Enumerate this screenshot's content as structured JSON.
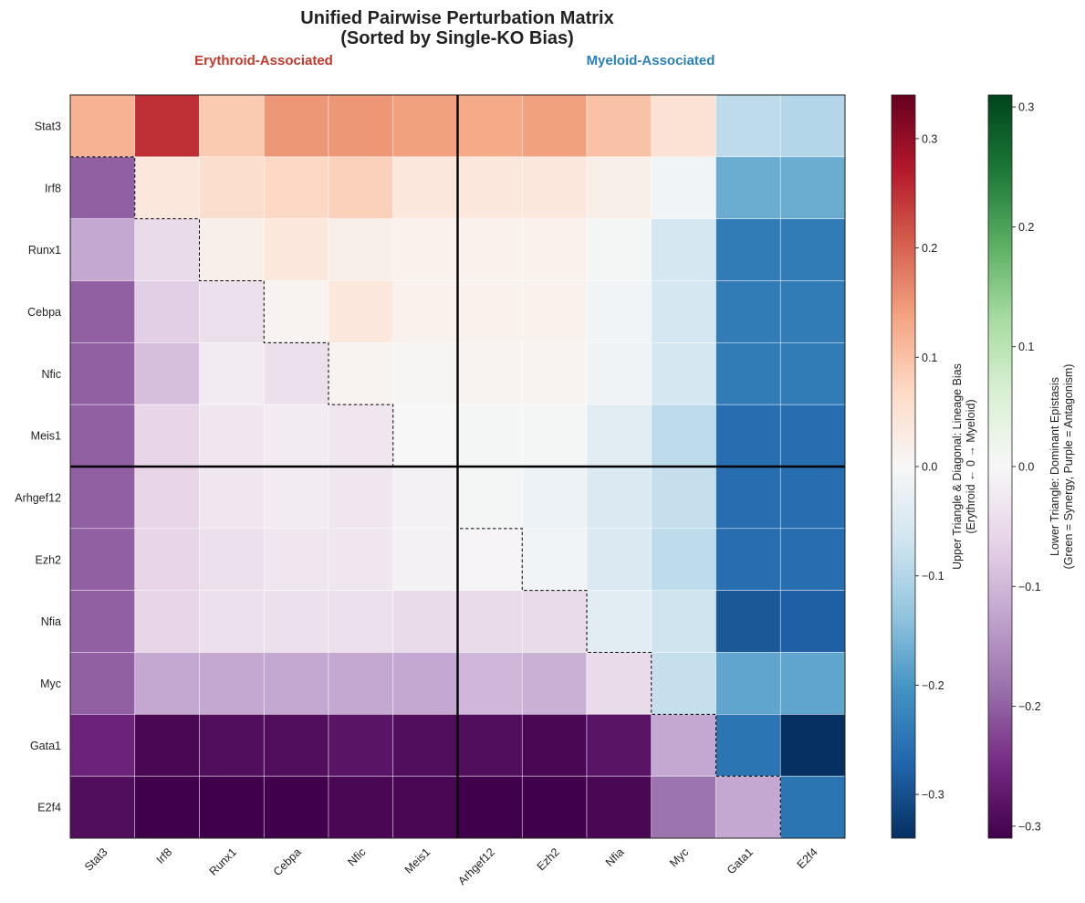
{
  "chart_data": {
    "type": "heatmap",
    "title_lines": [
      "Unified Pairwise Perturbation Matrix",
      "(Sorted by Single-KO Bias)"
    ],
    "group_labels": [
      {
        "text": "Erythroid-Associated",
        "color": "#c0392b"
      },
      {
        "text": "Myeloid-Associated",
        "color": "#2980b9"
      }
    ],
    "genes": [
      "Stat3",
      "Irf8",
      "Runx1",
      "Cebpa",
      "Nfic",
      "Meis1",
      "Arhgef12",
      "Ezh2",
      "Nfia",
      "Myc",
      "Gata1",
      "E2f4"
    ],
    "group_split_after_index": 5,
    "matrix": [
      [
        0.12,
        0.25,
        0.09,
        0.15,
        0.15,
        0.14,
        0.13,
        0.14,
        0.1,
        0.05,
        -0.09,
        -0.1
      ],
      [
        -0.2,
        0.04,
        0.06,
        0.07,
        0.08,
        0.04,
        0.04,
        0.04,
        0.02,
        -0.01,
        -0.17,
        -0.17
      ],
      [
        -0.12,
        -0.05,
        0.02,
        0.04,
        0.02,
        0.015,
        0.015,
        0.015,
        -0.005,
        -0.06,
        -0.24,
        -0.24
      ],
      [
        -0.2,
        -0.07,
        -0.04,
        0.01,
        0.04,
        0.015,
        0.015,
        0.015,
        -0.01,
        -0.06,
        -0.24,
        -0.24
      ],
      [
        -0.2,
        -0.09,
        -0.02,
        -0.04,
        0.01,
        0.005,
        0.01,
        0.01,
        -0.015,
        -0.06,
        -0.24,
        -0.24
      ],
      [
        -0.2,
        -0.06,
        -0.03,
        -0.02,
        -0.03,
        0.0,
        -0.005,
        -0.005,
        -0.04,
        -0.09,
        -0.26,
        -0.26
      ],
      [
        -0.2,
        -0.06,
        -0.03,
        -0.02,
        -0.03,
        -0.01,
        -0.005,
        -0.02,
        -0.05,
        -0.08,
        -0.26,
        -0.26
      ],
      [
        -0.2,
        -0.06,
        -0.04,
        -0.03,
        -0.03,
        -0.01,
        -0.005,
        -0.01,
        -0.05,
        -0.09,
        -0.26,
        -0.26
      ],
      [
        -0.2,
        -0.06,
        -0.04,
        -0.04,
        -0.04,
        -0.05,
        -0.05,
        -0.05,
        -0.04,
        -0.07,
        -0.29,
        -0.28
      ],
      [
        -0.2,
        -0.12,
        -0.12,
        -0.12,
        -0.12,
        -0.12,
        -0.1,
        -0.11,
        -0.05,
        -0.08,
        -0.18,
        -0.18
      ],
      [
        -0.26,
        -0.3,
        -0.29,
        -0.29,
        -0.28,
        -0.29,
        -0.29,
        -0.3,
        -0.28,
        -0.12,
        -0.25,
        -0.34
      ],
      [
        -0.29,
        -0.31,
        -0.31,
        -0.31,
        -0.3,
        -0.3,
        -0.31,
        -0.31,
        -0.3,
        -0.18,
        -0.12,
        -0.25
      ]
    ],
    "upper_colorbar": {
      "label_lines": [
        "Upper Triangle & Diagonal: Lineage Bias",
        "(Erythroid ← 0 → Myeloid)"
      ],
      "range": [
        -0.34,
        0.34
      ],
      "ticks": [
        -0.3,
        -0.2,
        -0.1,
        0.0,
        0.1,
        0.2,
        0.3
      ],
      "tick_labels": [
        "−0.3",
        "−0.2",
        "−0.1",
        "0.0",
        "0.1",
        "0.2",
        "0.3"
      ],
      "colormap": [
        "#053061",
        "#2166ac",
        "#4393c3",
        "#92c5de",
        "#d1e5f0",
        "#f7f7f7",
        "#fddbc7",
        "#f4a582",
        "#d6604d",
        "#b2182b",
        "#67001f"
      ]
    },
    "lower_colorbar": {
      "label_lines": [
        "Lower Triangle: Dominant Epistasis",
        "(Green = Synergy, Purple = Antagonism)"
      ],
      "range": [
        -0.31,
        0.31
      ],
      "ticks": [
        -0.3,
        -0.2,
        -0.1,
        0.0,
        0.1,
        0.2,
        0.3
      ],
      "tick_labels": [
        "−0.3",
        "−0.2",
        "−0.1",
        "0.0",
        "0.1",
        "0.2",
        "0.3"
      ],
      "colormap": [
        "#40004b",
        "#762a83",
        "#9970ab",
        "#c2a5cf",
        "#e7d4e8",
        "#f7f7f7",
        "#d9f0d3",
        "#a6dba0",
        "#5aae61",
        "#1b7837",
        "#00441b"
      ]
    }
  }
}
